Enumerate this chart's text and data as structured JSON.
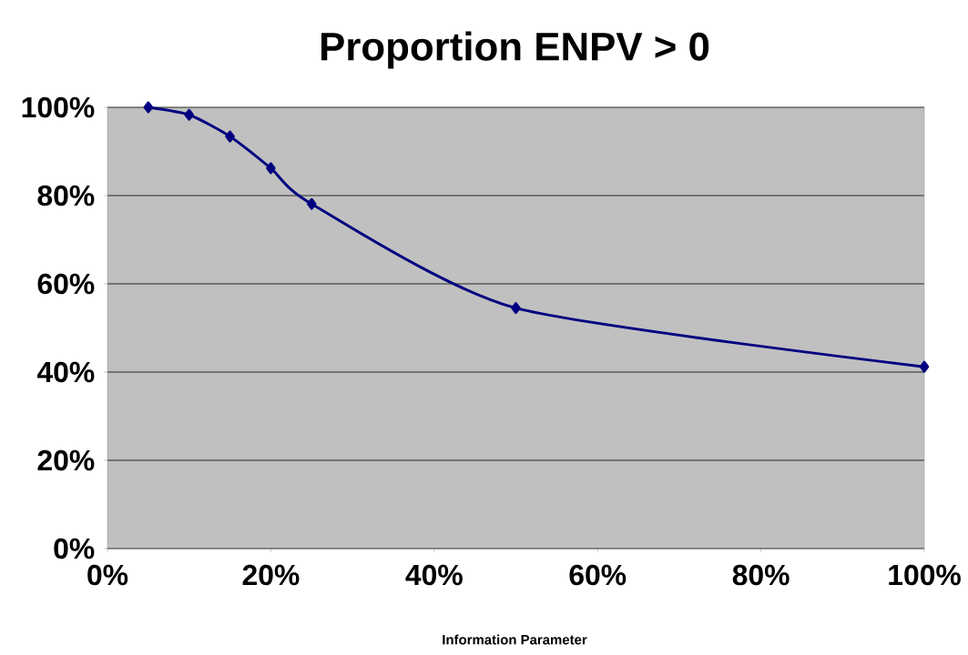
{
  "chart_data": {
    "type": "line",
    "title": "Proportion ENPV > 0",
    "xlabel": "Information Parameter",
    "x": [
      5,
      10,
      15,
      20,
      25,
      50,
      100
    ],
    "series": [
      {
        "color": "#000080",
        "values": [
          100,
          98.3,
          93.4,
          86.2,
          78.1,
          54.5,
          41.2
        ]
      }
    ],
    "marker": "diamond",
    "line_style": "solid",
    "grid": "y",
    "xlim": [
      0,
      100
    ],
    "ylim": [
      0,
      100
    ],
    "xticks": [
      {
        "value": 0,
        "label": "0%"
      },
      {
        "value": 20,
        "label": "20%"
      },
      {
        "value": 40,
        "label": "40%"
      },
      {
        "value": 60,
        "label": "60%"
      },
      {
        "value": 80,
        "label": "80%"
      },
      {
        "value": 100,
        "label": "100%"
      }
    ],
    "yticks": [
      {
        "value": 0,
        "label": "0%"
      },
      {
        "value": 20,
        "label": "20%"
      },
      {
        "value": 40,
        "label": "40%"
      },
      {
        "value": 60,
        "label": "60%"
      },
      {
        "value": 80,
        "label": "80%"
      },
      {
        "value": 100,
        "label": "100%"
      }
    ]
  }
}
